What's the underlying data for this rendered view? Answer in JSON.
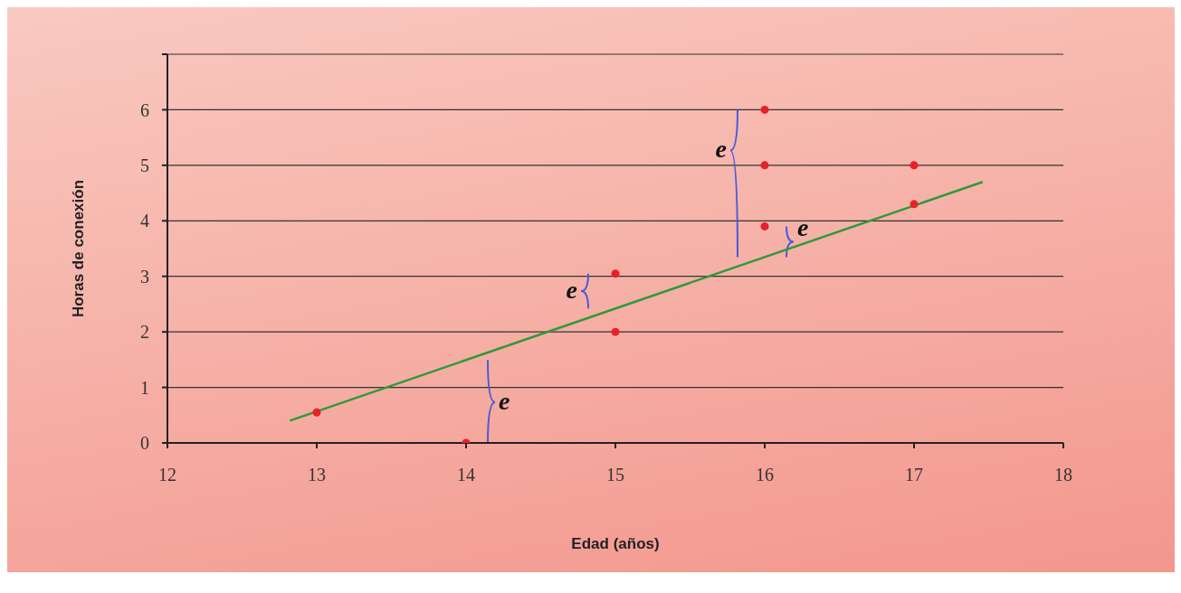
{
  "chart_data": {
    "type": "scatter",
    "xlabel": "Edad (años)",
    "ylabel": "Horas de conexión",
    "xlim": [
      12,
      18
    ],
    "xticks": [
      12,
      13,
      14,
      15,
      16,
      17,
      18
    ],
    "ylim": [
      0,
      7
    ],
    "yticks": [
      0,
      1,
      2,
      3,
      4,
      5,
      6,
      {
        "value": 7,
        "label": null
      }
    ],
    "grid": "y",
    "legend": false,
    "marker": "circle",
    "series": [
      {
        "type": "scatter",
        "color": "#e8202a",
        "x": [
          13,
          14,
          15,
          15,
          16,
          16,
          16,
          17,
          17
        ],
        "values": [
          0.55,
          0,
          3.05,
          2,
          6,
          5,
          3.9,
          5,
          4.3
        ]
      },
      {
        "type": "line",
        "color": "#2e9a3a",
        "x": [
          12.82,
          17.46
        ],
        "values": [
          0.4,
          4.7
        ],
        "marker": "none",
        "line_style": "solid"
      }
    ],
    "annotations": [
      {
        "text": "e",
        "x": 14,
        "y": 0
      },
      {
        "text": "e",
        "x": 15,
        "y": 3.05
      },
      {
        "text": "e",
        "x": 16,
        "y": 6
      },
      {
        "text": "e",
        "x": 16,
        "y": 3.9
      }
    ]
  }
}
